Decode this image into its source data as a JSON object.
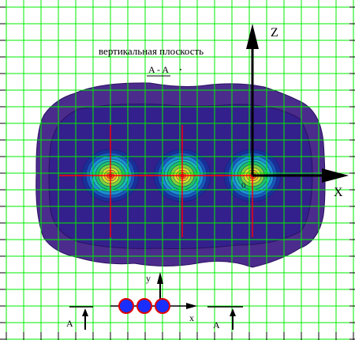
{
  "title": "вертикальная плоскость",
  "section_label": "A - A",
  "axes_main": {
    "vertical": "Z",
    "horizontal": "X",
    "origin": "0"
  },
  "inset": {
    "x_axis": "x",
    "y_axis": "y",
    "section_left": "A",
    "section_right": "A",
    "conductor_count": 3
  },
  "colors": {
    "grid": "#00ee00",
    "field_outer": "#4b2c8c",
    "field_mid": "#2e1f8a",
    "cross_lines": "#ff0000",
    "conductor": "#1a2fff",
    "conductor_edge": "#e00000"
  }
}
